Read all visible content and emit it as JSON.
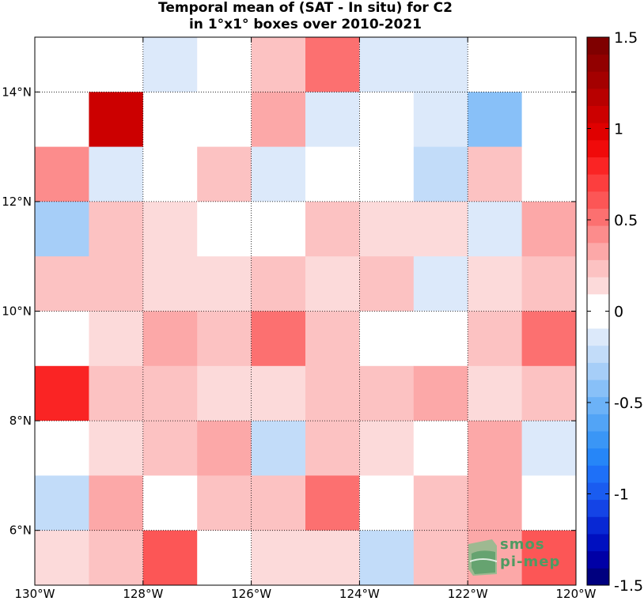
{
  "title": [
    "Temporal mean of (SAT - In situ) for C2",
    "in 1°x1° boxes over 2010-2021"
  ],
  "logo": {
    "line1": "smos",
    "line2": "pi-mep"
  },
  "chart_data": {
    "type": "heatmap",
    "title": "Temporal mean of (SAT - In situ) for C2 in 1°x1° boxes over 2010-2021",
    "xlabel": "",
    "ylabel": "",
    "x_range": [
      -130,
      -120
    ],
    "y_range": [
      5,
      15
    ],
    "x_ticks": [
      -130,
      -128,
      -126,
      -124,
      -122,
      -120
    ],
    "x_tick_labels": [
      "130°W",
      "128°W",
      "126°W",
      "124°W",
      "122°W",
      "120°W"
    ],
    "y_ticks": [
      6,
      8,
      10,
      12,
      14
    ],
    "y_tick_labels": [
      "6°N",
      "8°N",
      "10°N",
      "12°N",
      "14°N"
    ],
    "grid": true,
    "cell_size_deg": 1,
    "columns_lon_west_edges": [
      -130,
      -129,
      -128,
      -127,
      -126,
      -125,
      -124,
      -123,
      -122,
      -121
    ],
    "rows_lat_top_edges": [
      15,
      14,
      13,
      12,
      11,
      10,
      9,
      8,
      7,
      6
    ],
    "values": [
      [
        0.0,
        0.0,
        -0.1,
        0.0,
        0.2,
        0.5,
        -0.1,
        -0.1,
        0.0,
        0.0
      ],
      [
        0.0,
        1.05,
        0.0,
        0.0,
        0.35,
        -0.1,
        0.0,
        -0.1,
        -0.4,
        0.0
      ],
      [
        0.45,
        -0.1,
        0.0,
        0.25,
        -0.1,
        0.0,
        0.0,
        -0.2,
        0.25,
        0.0
      ],
      [
        -0.3,
        0.25,
        0.15,
        0.0,
        0.0,
        0.25,
        0.15,
        0.15,
        -0.1,
        0.35
      ],
      [
        0.25,
        0.25,
        0.15,
        0.15,
        0.25,
        0.15,
        0.25,
        -0.1,
        0.15,
        0.25
      ],
      [
        0.0,
        0.15,
        0.35,
        0.25,
        0.55,
        0.25,
        0.0,
        0.0,
        0.25,
        0.55
      ],
      [
        0.8,
        0.25,
        0.25,
        0.15,
        0.15,
        0.25,
        0.25,
        0.35,
        0.15,
        0.25
      ],
      [
        0.0,
        0.15,
        0.25,
        0.35,
        -0.2,
        0.25,
        0.15,
        0.0,
        0.35,
        -0.1
      ],
      [
        -0.2,
        0.35,
        0.0,
        0.25,
        0.25,
        0.55,
        0.0,
        0.25,
        0.35,
        0.0
      ],
      [
        0.15,
        0.25,
        0.65,
        0.0,
        0.15,
        0.15,
        -0.2,
        0.25,
        0.35,
        0.65
      ]
    ],
    "colorbar": {
      "range": [
        -1.5,
        1.5
      ],
      "ticks": [
        -1.5,
        -1,
        -0.5,
        0,
        0.5,
        1,
        1.5
      ],
      "tick_labels": [
        "-1.5",
        "-1",
        "-0.5",
        "0",
        "0.5",
        "1",
        "1.5"
      ],
      "colors": [
        "#00007f",
        "#0000a6",
        "#0010c0",
        "#0828d4",
        "#1444e6",
        "#1a5cf0",
        "#1e70f8",
        "#2686f8",
        "#3a96f6",
        "#52a4f6",
        "#6cb2f7",
        "#88c0f8",
        "#a6cef8",
        "#c2dcf9",
        "#dce9fa",
        "#ffffff",
        "#ffffff",
        "#fcdada",
        "#fcc2c2",
        "#fca8a8",
        "#fc8c8c",
        "#fc7070",
        "#fc5656",
        "#fc3e3e",
        "#fa2424",
        "#f00a0a",
        "#e00000",
        "#cc0000",
        "#b80000",
        "#a40000",
        "#920000",
        "#7f0000"
      ]
    }
  }
}
